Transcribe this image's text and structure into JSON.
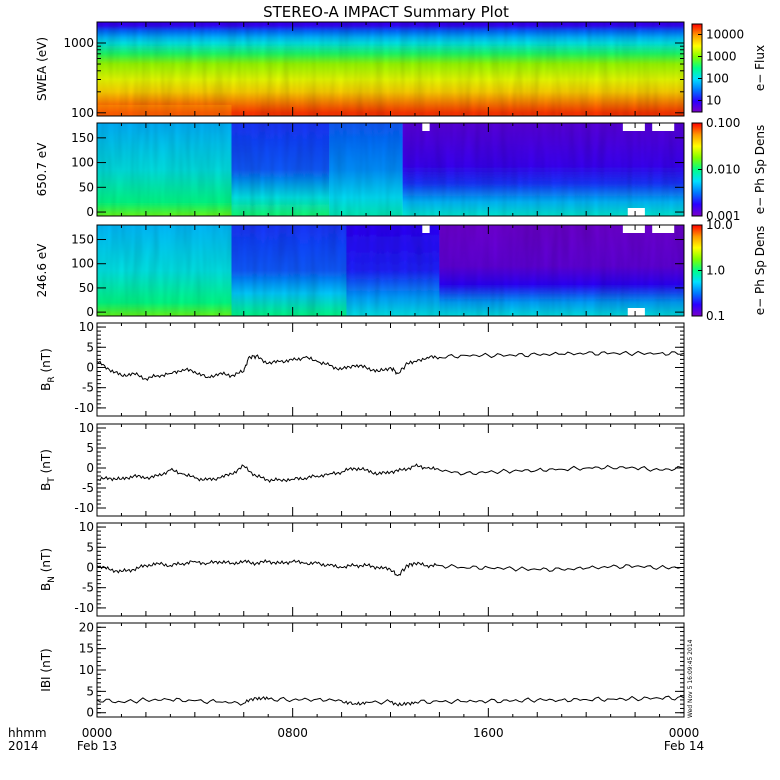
{
  "title": "STEREO-A IMPACT Summary Plot",
  "time_axis": {
    "corner_labels": [
      "hhmm",
      "2014"
    ],
    "ticks": [
      {
        "hhmm": "0000",
        "date": "Feb 13",
        "hour": 0
      },
      {
        "hhmm": "0800",
        "date": "",
        "hour": 8
      },
      {
        "hhmm": "1600",
        "date": "",
        "hour": 16
      },
      {
        "hhmm": "0000",
        "date": "Feb 14",
        "hour": 24
      }
    ],
    "range_hours": [
      0,
      24
    ]
  },
  "timestamp": "Wed Nov  5 16:09:45 2014",
  "colors": {
    "background": "#ffffff",
    "line": "#000000",
    "colormap": [
      "#7a00c8",
      "#2a00ff",
      "#0078ff",
      "#00e0ff",
      "#00ff88",
      "#80ff00",
      "#ffff00",
      "#ff9900",
      "#ff0000"
    ],
    "no_data": "#ffffff"
  },
  "chart_data": [
    {
      "type": "heatmap",
      "ylabel": "SWEA (eV)",
      "yscale": "log",
      "ylim": [
        90,
        2000
      ],
      "yticks": [
        "100",
        "1000"
      ],
      "colorbar": {
        "label": "e− Flux",
        "scale": "log",
        "range": [
          3,
          30000
        ],
        "ticks": [
          "10",
          "100",
          "1000",
          "10000"
        ]
      },
      "description_levels": {
        "1800": 8,
        "1500": 25,
        "1200": 60,
        "1000": 120,
        "700": 400,
        "500": 1200,
        "300": 2500,
        "200": 5000,
        "100": 20000
      }
    },
    {
      "type": "heatmap",
      "ylabel": "650.7 eV",
      "ylim": [
        -8,
        180
      ],
      "yticks": [
        "0",
        "50",
        "100",
        "150"
      ],
      "colorbar": {
        "label": "e− Ph Sp Dens",
        "scale": "log",
        "range": [
          0.001,
          0.1
        ],
        "ticks": [
          "0.001",
          "0.010",
          "0.100"
        ]
      }
    },
    {
      "type": "heatmap",
      "ylabel": "246.6 eV",
      "ylim": [
        -8,
        180
      ],
      "yticks": [
        "0",
        "50",
        "100",
        "150"
      ],
      "colorbar": {
        "label": "e− Ph Sp Dens",
        "scale": "log",
        "range": [
          0.1,
          10
        ],
        "ticks": [
          "0.1",
          "1.0",
          "10.0"
        ]
      }
    },
    {
      "type": "line",
      "ylabel": "B_R (nT)",
      "ylabel_main": "B",
      "ylabel_sub": "R",
      "ylabel_unit": " (nT)",
      "ylim": [
        -12,
        11
      ],
      "yticks": [
        "-10",
        "-5",
        "0",
        "5",
        "10"
      ],
      "x": [
        0,
        0.5,
        1,
        1.5,
        2,
        2.5,
        3,
        3.5,
        4,
        4.5,
        5,
        5.5,
        6,
        6.2,
        6.5,
        7,
        7.5,
        8,
        8.5,
        9,
        9.5,
        10,
        10.5,
        11,
        11.5,
        12,
        12.3,
        12.7,
        13,
        13.5,
        14,
        15,
        16,
        17,
        18,
        19,
        20,
        21,
        22,
        23,
        24
      ],
      "y": [
        1.5,
        -0.5,
        -2.0,
        -1.5,
        -2.8,
        -2.0,
        -1.5,
        -0.5,
        -1.0,
        -2.5,
        -1.5,
        -2.0,
        -1.0,
        2.5,
        2.8,
        1.0,
        1.5,
        1.8,
        2.5,
        1.5,
        0.5,
        -0.5,
        0.5,
        0.0,
        -1.0,
        0.0,
        -1.5,
        1.0,
        1.5,
        2.5,
        2.5,
        3.0,
        3.0,
        3.0,
        3.2,
        3.3,
        3.5,
        3.5,
        3.5,
        3.5,
        3.5
      ]
    },
    {
      "type": "line",
      "ylabel": "B_T (nT)",
      "ylabel_main": "B",
      "ylabel_sub": "T",
      "ylabel_unit": " (nT)",
      "ylim": [
        -12,
        11
      ],
      "yticks": [
        "-10",
        "-5",
        "0",
        "5",
        "10"
      ],
      "x": [
        0,
        0.5,
        1,
        1.5,
        2,
        2.5,
        3,
        3.5,
        4,
        4.5,
        5,
        5.5,
        6,
        6.5,
        7,
        7.5,
        8,
        8.5,
        9,
        9.5,
        10,
        10.5,
        11,
        11.5,
        12,
        12.5,
        13,
        13.5,
        14,
        15,
        16,
        17,
        18,
        19,
        20,
        21,
        22,
        23,
        24
      ],
      "y": [
        -3.0,
        -2.5,
        -2.8,
        -2.0,
        -2.5,
        -2.0,
        -0.5,
        -1.5,
        -2.5,
        -3.0,
        -2.5,
        -1.5,
        0.5,
        -2.0,
        -3.0,
        -3.0,
        -2.8,
        -2.5,
        -2.0,
        -1.5,
        -1.0,
        0.0,
        -0.5,
        -1.5,
        -1.0,
        -0.5,
        0.5,
        0.0,
        -0.5,
        -1.5,
        -1.0,
        -0.8,
        -0.5,
        -0.3,
        0.0,
        0.2,
        0.0,
        -0.5,
        0.0
      ]
    },
    {
      "type": "line",
      "ylabel": "B_N (nT)",
      "ylabel_main": "B",
      "ylabel_sub": "N",
      "ylabel_unit": " (nT)",
      "ylim": [
        -12,
        11
      ],
      "yticks": [
        "-10",
        "-5",
        "0",
        "5",
        "10"
      ],
      "x": [
        0,
        0.5,
        1,
        1.5,
        2,
        2.5,
        3,
        3.5,
        4,
        4.5,
        5,
        5.5,
        6,
        6.5,
        7,
        7.5,
        8,
        8.5,
        9,
        9.5,
        10,
        10.5,
        11,
        11.5,
        12,
        12.3,
        12.7,
        13,
        13.5,
        14,
        15,
        16,
        17,
        18,
        19,
        20,
        21,
        22,
        23,
        24
      ],
      "y": [
        0.5,
        -0.5,
        -1.0,
        -0.5,
        0.5,
        1.0,
        0.5,
        1.0,
        1.5,
        1.0,
        1.5,
        1.0,
        1.5,
        1.0,
        1.5,
        1.0,
        1.5,
        1.0,
        1.0,
        0.5,
        0.0,
        0.5,
        0.5,
        0.0,
        -0.5,
        -2.0,
        0.5,
        1.0,
        0.5,
        0.5,
        0.0,
        0.0,
        -0.3,
        -0.5,
        -0.5,
        -0.2,
        0.2,
        0.3,
        0.0,
        0.0
      ]
    },
    {
      "type": "line",
      "ylabel": "|B| (nT)",
      "ylabel_main": "IBI",
      "ylabel_sub": "",
      "ylabel_unit": " (nT)",
      "ylim": [
        -1,
        21
      ],
      "yticks": [
        "0",
        "5",
        "10",
        "15",
        "20"
      ],
      "x": [
        0,
        1,
        2,
        3,
        4,
        5,
        6,
        6.5,
        7,
        8,
        9,
        10,
        10.5,
        11,
        12,
        12.5,
        13,
        14,
        15,
        16,
        17,
        18,
        19,
        20,
        21,
        22,
        23,
        24
      ],
      "y": [
        3.0,
        2.5,
        3.0,
        3.0,
        2.8,
        2.5,
        2.2,
        3.5,
        3.2,
        3.0,
        3.2,
        2.8,
        2.0,
        2.5,
        2.5,
        1.8,
        2.5,
        2.6,
        2.6,
        2.7,
        2.8,
        3.0,
        3.0,
        3.1,
        3.2,
        3.3,
        3.4,
        3.5
      ]
    }
  ]
}
